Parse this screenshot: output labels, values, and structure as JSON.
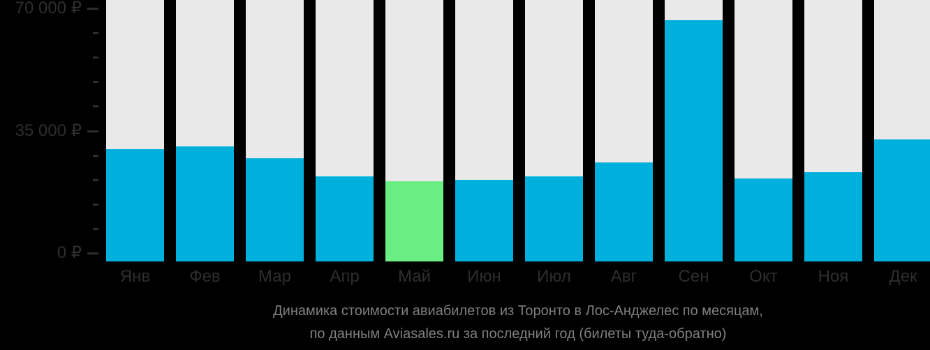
{
  "chart_data": {
    "type": "bar",
    "title": "Динамика стоимости авиабилетов из Торонто в Лос-Анджелес по месяцам",
    "categories": [
      "Янв",
      "Фев",
      "Мар",
      "Апр",
      "Май",
      "Июн",
      "Июл",
      "Авг",
      "Сен",
      "Окт",
      "Ноя",
      "Дек"
    ],
    "values": [
      29700,
      30500,
      27100,
      22000,
      20600,
      20900,
      22000,
      25900,
      66600,
      21300,
      23100,
      32600
    ],
    "value_unit": "₽",
    "highlight_index": 4,
    "highlight_meaning": "cheapest-month",
    "yticks": [
      {
        "value": 0,
        "label": "0 ₽"
      },
      {
        "value": 35000,
        "label": "35 000 ₽"
      },
      {
        "value": 70000,
        "label": "70 000 ₽"
      }
    ],
    "minor_tick_step": 7000,
    "ylim": [
      0,
      70000
    ],
    "grid": false,
    "legend": false
  },
  "caption": {
    "line1": "Динамика стоимости авиабилетов из Торонто в Лос-Анджелес по месяцам,",
    "line2": "по данным Aviasales.ru за последний год (билеты туда-обратно)"
  },
  "colors": {
    "background": "#000000",
    "bar": "#00b0dc",
    "bar_highlight": "#6aee84",
    "column_background": "#e9e9e9",
    "axis_text": "#2e2e2e",
    "caption_text": "#7f7f7f"
  }
}
